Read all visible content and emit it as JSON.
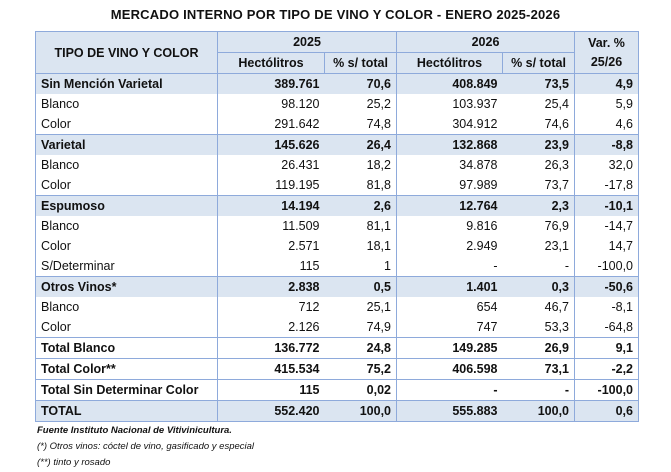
{
  "title": "MERCADO INTERNO POR TIPO DE VINO Y COLOR - ENERO 2025-2026",
  "headers": {
    "row_label": "TIPO DE VINO Y COLOR",
    "year1": "2025",
    "year2": "2026",
    "variation": "Var. % 25/26",
    "hl": "Hectólitros",
    "pct": "% s/ total"
  },
  "rows": [
    {
      "kind": "group",
      "label": "Sin Mención Varietal",
      "hl25": "389.761",
      "pct25": "70,6",
      "hl26": "408.849",
      "pct26": "73,5",
      "var": "4,9"
    },
    {
      "kind": "item",
      "label": "Blanco",
      "hl25": "98.120",
      "pct25": "25,2",
      "hl26": "103.937",
      "pct26": "25,4",
      "var": "5,9"
    },
    {
      "kind": "item",
      "label": "Color",
      "hl25": "291.642",
      "pct25": "74,8",
      "hl26": "304.912",
      "pct26": "74,6",
      "var": "4,6"
    },
    {
      "kind": "group",
      "label": "Varietal",
      "hl25": "145.626",
      "pct25": "26,4",
      "hl26": "132.868",
      "pct26": "23,9",
      "var": "-8,8"
    },
    {
      "kind": "item",
      "label": "Blanco",
      "hl25": "26.431",
      "pct25": "18,2",
      "hl26": "34.878",
      "pct26": "26,3",
      "var": "32,0"
    },
    {
      "kind": "item",
      "label": "Color",
      "hl25": "119.195",
      "pct25": "81,8",
      "hl26": "97.989",
      "pct26": "73,7",
      "var": "-17,8"
    },
    {
      "kind": "group",
      "label": "Espumoso",
      "hl25": "14.194",
      "pct25": "2,6",
      "hl26": "12.764",
      "pct26": "2,3",
      "var": "-10,1"
    },
    {
      "kind": "item",
      "label": "Blanco",
      "hl25": "11.509",
      "pct25": "81,1",
      "hl26": "9.816",
      "pct26": "76,9",
      "var": "-14,7"
    },
    {
      "kind": "item",
      "label": "Color",
      "hl25": "2.571",
      "pct25": "18,1",
      "hl26": "2.949",
      "pct26": "23,1",
      "var": "14,7"
    },
    {
      "kind": "item",
      "label": "S/Determinar",
      "hl25": "115",
      "pct25": "1",
      "hl26": "-",
      "pct26": "-",
      "var": "-100,0"
    },
    {
      "kind": "group",
      "label": "Otros Vinos*",
      "hl25": "2.838",
      "pct25": "0,5",
      "hl26": "1.401",
      "pct26": "0,3",
      "var": "-50,6"
    },
    {
      "kind": "item",
      "label": "Blanco",
      "hl25": "712",
      "pct25": "25,1",
      "hl26": "654",
      "pct26": "46,7",
      "var": "-8,1"
    },
    {
      "kind": "item",
      "label": "Color",
      "hl25": "2.126",
      "pct25": "74,9",
      "hl26": "747",
      "pct26": "53,3",
      "var": "-64,8"
    },
    {
      "kind": "total",
      "label": "Total Blanco",
      "hl25": "136.772",
      "pct25": "24,8",
      "hl26": "149.285",
      "pct26": "26,9",
      "var": "9,1"
    },
    {
      "kind": "total",
      "label": "Total Color**",
      "hl25": "415.534",
      "pct25": "75,2",
      "hl26": "406.598",
      "pct26": "73,1",
      "var": "-2,2"
    },
    {
      "kind": "total",
      "label": "Total Sin Determinar Color",
      "hl25": "115",
      "pct25": "0,02",
      "hl26": "-",
      "pct26": "-",
      "var": "-100,0"
    },
    {
      "kind": "grand",
      "label": "TOTAL",
      "hl25": "552.420",
      "pct25": "100,0",
      "hl26": "555.883",
      "pct26": "100,0",
      "var": "0,6"
    }
  ],
  "notes": {
    "source": "Fuente Instituto Nacional de Vitivinicultura.",
    "note1": "(*) Otros vinos: cóctel de vino, gasificado y especial",
    "note2": "(**) tinto y rosado"
  }
}
